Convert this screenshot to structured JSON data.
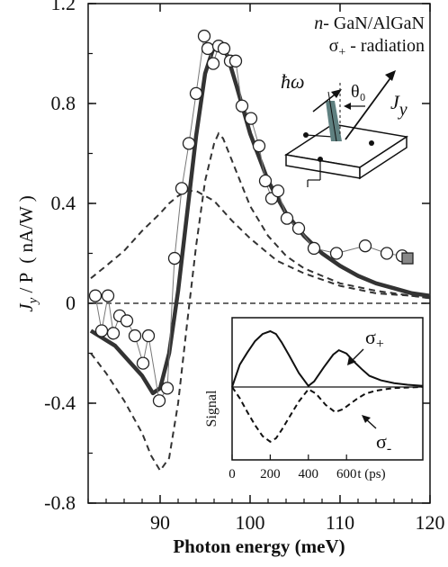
{
  "chart_data": [
    {
      "type": "line",
      "title": "",
      "legend_lines": [
        {
          "prefix": "n-",
          "rest": " GaN/AlGaN"
        },
        {
          "symbol": "σ",
          "sub": "+",
          "rest": " - radiation"
        }
      ],
      "xlabel": "Photon energy (meV)",
      "ylabel": {
        "j": "J",
        "sub": "y",
        "rest": " / P",
        "unit": "( nA/W )"
      },
      "xlim": [
        82,
        120
      ],
      "ylim": [
        -0.8,
        1.2
      ],
      "x_ticks": [
        90,
        100,
        110,
        120
      ],
      "y_ticks": [
        -0.8,
        -0.4,
        0,
        0.4,
        0.8,
        1.2
      ],
      "y_tick_labels": [
        "-0.8",
        "-0.4",
        "0",
        "0.4",
        "0.8",
        "1.2"
      ],
      "series": [
        {
          "style": "markers-connected",
          "x": [
            82.8,
            83.5,
            84.2,
            84.8,
            85.5,
            86.3,
            87.2,
            88.1,
            88.7,
            89.9,
            90.8,
            91.6,
            92.4,
            93.2,
            94.0,
            94.9,
            95.3,
            95.9,
            96.5,
            97.1,
            97.8,
            98.4,
            99.1,
            100.1,
            101.0,
            101.7,
            102.4,
            103.1,
            104.1,
            105.4,
            107.1,
            109.6,
            112.8,
            115.2,
            116.9
          ],
          "y": [
            0.03,
            -0.11,
            0.03,
            -0.12,
            -0.05,
            -0.07,
            -0.13,
            -0.24,
            -0.13,
            -0.39,
            -0.34,
            0.18,
            0.46,
            0.64,
            0.84,
            1.07,
            1.02,
            0.96,
            1.03,
            1.02,
            0.97,
            0.97,
            0.79,
            0.74,
            0.63,
            0.49,
            0.42,
            0.45,
            0.34,
            0.3,
            0.22,
            0.2,
            0.23,
            0.2,
            0.19
          ],
          "end_marker": {
            "x": 117.5,
            "y": 0.18
          }
        },
        {
          "style": "thick-line",
          "x": [
            82.3,
            85,
            88,
            89.2,
            90,
            91,
            92,
            93,
            94,
            95,
            96,
            96.7,
            97.5,
            98.5,
            100,
            102,
            104,
            106,
            108,
            110,
            112,
            114,
            116,
            118,
            120
          ],
          "y": [
            -0.11,
            -0.17,
            -0.29,
            -0.36,
            -0.34,
            -0.2,
            0.05,
            0.36,
            0.67,
            0.92,
            1.03,
            1.04,
            0.99,
            0.87,
            0.68,
            0.49,
            0.36,
            0.27,
            0.2,
            0.15,
            0.11,
            0.08,
            0.06,
            0.04,
            0.03
          ]
        },
        {
          "style": "dashed",
          "x": [
            82.3,
            84,
            86,
            88,
            90,
            91,
            92,
            93,
            94,
            95,
            96,
            98,
            100,
            103,
            106,
            110,
            114,
            118,
            120
          ],
          "y": [
            0.1,
            0.15,
            0.21,
            0.29,
            0.36,
            0.4,
            0.43,
            0.45,
            0.45,
            0.43,
            0.41,
            0.33,
            0.26,
            0.17,
            0.12,
            0.07,
            0.04,
            0.03,
            0.02
          ]
        },
        {
          "style": "dashed",
          "x": [
            82.3,
            84,
            86,
            88,
            89,
            90,
            91,
            92,
            93,
            94,
            95,
            96,
            96.5,
            97,
            98,
            99,
            100,
            102,
            104,
            106,
            108,
            110,
            114,
            118,
            120
          ],
          "y": [
            -0.2,
            -0.28,
            -0.39,
            -0.52,
            -0.61,
            -0.67,
            -0.62,
            -0.4,
            -0.08,
            0.23,
            0.49,
            0.64,
            0.68,
            0.66,
            0.57,
            0.48,
            0.39,
            0.27,
            0.19,
            0.14,
            0.11,
            0.08,
            0.05,
            0.03,
            0.02
          ]
        }
      ],
      "zero_line": true,
      "schematic": {
        "hw": "ħω",
        "theta": "θ₀",
        "J": "J",
        "Jsub": "y"
      }
    },
    {
      "type": "line",
      "xlabel": "t (ps)",
      "ylabel": "Signal",
      "xlim": [
        0,
        1000
      ],
      "x_ticks": [
        0,
        200,
        400,
        600
      ],
      "series": [
        {
          "name": "σ+",
          "style": "solid",
          "t": [
            0,
            40,
            80,
            120,
            160,
            200,
            230,
            260,
            300,
            350,
            400,
            430,
            480,
            530,
            560,
            600,
            640,
            680,
            720,
            780,
            850,
            920,
            1000
          ],
          "v": [
            0,
            0.4,
            0.62,
            0.82,
            0.95,
            1.0,
            0.95,
            0.8,
            0.56,
            0.25,
            0.02,
            0.1,
            0.35,
            0.58,
            0.66,
            0.6,
            0.45,
            0.32,
            0.2,
            0.12,
            0.07,
            0.04,
            0.02
          ]
        },
        {
          "name": "σ-",
          "style": "dashed",
          "t": [
            0,
            40,
            80,
            120,
            160,
            200,
            230,
            260,
            300,
            350,
            400,
            440,
            490,
            540,
            580,
            620,
            660,
            700,
            750,
            800,
            850,
            920,
            1000
          ],
          "v": [
            0,
            -0.2,
            -0.45,
            -0.68,
            -0.88,
            -0.98,
            -0.92,
            -0.77,
            -0.54,
            -0.26,
            -0.04,
            -0.12,
            -0.32,
            -0.45,
            -0.4,
            -0.3,
            -0.2,
            -0.12,
            -0.07,
            -0.04,
            -0.02,
            -0.01,
            0
          ]
        }
      ],
      "labels": {
        "plus": "+",
        "minus": "-",
        "sigma": "σ"
      }
    }
  ]
}
